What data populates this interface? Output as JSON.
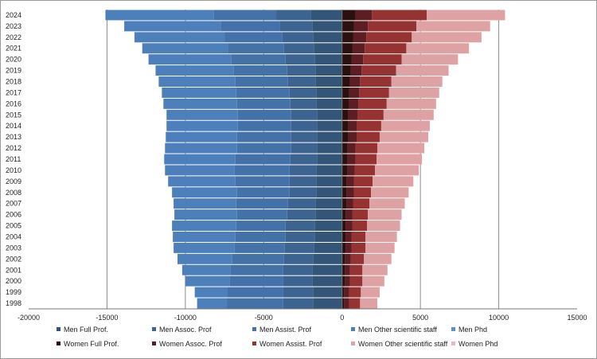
{
  "chart_data": {
    "type": "bar",
    "orientation": "horizontal",
    "stacking": "population-pyramid",
    "title": "",
    "xlabel": "",
    "ylabel": "",
    "xlim": [
      -20000,
      15000
    ],
    "x_ticks": [
      -20000,
      -15000,
      -10000,
      -5000,
      0,
      5000,
      10000,
      15000
    ],
    "x_tick_labels": [
      "-20000",
      "-15000",
      "-10000",
      "-5000",
      "0",
      "5000",
      "10000",
      "15000"
    ],
    "grid": "vertical",
    "legend_position": "bottom",
    "categories": [
      "1998",
      "1999",
      "2000",
      "2001",
      "2002",
      "2003",
      "2004",
      "2005",
      "2006",
      "2007",
      "2008",
      "2009",
      "2010",
      "2011",
      "2012",
      "2013",
      "2014",
      "2015",
      "2016",
      "2017",
      "2018",
      "2019",
      "2020",
      "2021",
      "2022",
      "2023",
      "2024"
    ],
    "series": [
      {
        "name": "Men Full Prof.",
        "side": "men",
        "color": "#335577",
        "values": [
          -1850,
          -1850,
          -1900,
          -1900,
          -1850,
          -1800,
          -1750,
          -1750,
          -1700,
          -1700,
          -1650,
          -1650,
          -1650,
          -1600,
          -1600,
          -1600,
          -1600,
          -1600,
          -1650,
          -1650,
          -1700,
          -1700,
          -1750,
          -1800,
          -1850,
          -1900,
          -2000
        ]
      },
      {
        "name": "Men Assoc. Prof",
        "side": "men",
        "color": "#3d6491",
        "values": [
          -1900,
          -1900,
          -1850,
          -1850,
          -1850,
          -1850,
          -1850,
          -1850,
          -1800,
          -1750,
          -1700,
          -1700,
          -1700,
          -1700,
          -1650,
          -1650,
          -1650,
          -1650,
          -1650,
          -1700,
          -1750,
          -1800,
          -1850,
          -1900,
          -1950,
          -2050,
          -2200
        ]
      },
      {
        "name": "Men Assist. Prof",
        "side": "men",
        "color": "#4471a7",
        "values": [
          -3600,
          -3550,
          -3400,
          -3350,
          -3300,
          -3200,
          -3200,
          -3150,
          -3200,
          -3300,
          -3350,
          -3450,
          -3500,
          -3500,
          -3450,
          -3450,
          -3400,
          -3400,
          -3400,
          -3400,
          -3350,
          -3400,
          -3450,
          -3550,
          -3700,
          -3800,
          -4000
        ]
      },
      {
        "name": "Men Other scientific staff",
        "side": "men",
        "color": "#4d7fbb",
        "values": [
          -1900,
          -2100,
          -2850,
          -3100,
          -3500,
          -3900,
          -4000,
          -4100,
          -4000,
          -4000,
          -4150,
          -4300,
          -4450,
          -4550,
          -4600,
          -4550,
          -4550,
          -4550,
          -4700,
          -4750,
          -4900,
          -5000,
          -5300,
          -5500,
          -5750,
          -6150,
          -6900
        ]
      },
      {
        "name": "Men Phd",
        "side": "men",
        "color": "#5b8fd0",
        "values": [
          0,
          0,
          0,
          0,
          0,
          0,
          0,
          0,
          0,
          0,
          0,
          0,
          0,
          0,
          0,
          0,
          0,
          0,
          0,
          0,
          0,
          0,
          0,
          0,
          0,
          0,
          0
        ]
      },
      {
        "name": "Women Full Prof.",
        "side": "women",
        "color": "#2b1010",
        "values": [
          150,
          150,
          200,
          200,
          200,
          250,
          250,
          250,
          250,
          300,
          300,
          300,
          350,
          350,
          350,
          400,
          400,
          400,
          450,
          450,
          500,
          550,
          600,
          650,
          700,
          750,
          850
        ]
      },
      {
        "name": "Women Assoc. Prof",
        "side": "women",
        "color": "#5c1e22",
        "values": [
          300,
          300,
          300,
          300,
          350,
          350,
          350,
          400,
          400,
          400,
          450,
          450,
          450,
          500,
          500,
          550,
          550,
          600,
          600,
          650,
          650,
          700,
          750,
          800,
          850,
          900,
          1050
        ]
      },
      {
        "name": "Women Assist. Prof",
        "side": "women",
        "color": "#953232",
        "values": [
          700,
          750,
          800,
          800,
          850,
          900,
          900,
          950,
          1000,
          1050,
          1100,
          1200,
          1300,
          1350,
          1400,
          1450,
          1550,
          1650,
          1800,
          1900,
          2000,
          2200,
          2450,
          2650,
          2900,
          3100,
          3500
        ]
      },
      {
        "name": "Women Other scientific staff",
        "side": "women",
        "color": "#dfa2a4",
        "values": [
          1100,
          1200,
          1400,
          1600,
          1750,
          1850,
          2000,
          2100,
          2150,
          2250,
          2400,
          2600,
          2800,
          2900,
          3000,
          3100,
          3100,
          3200,
          3150,
          3200,
          3250,
          3350,
          3600,
          4000,
          4450,
          4700,
          5000
        ]
      },
      {
        "name": "Women Phd",
        "side": "women",
        "color": "#e9babc",
        "values": [
          0,
          0,
          0,
          0,
          0,
          0,
          0,
          0,
          0,
          0,
          0,
          0,
          0,
          0,
          0,
          0,
          0,
          0,
          0,
          0,
          0,
          0,
          0,
          0,
          0,
          0,
          0
        ]
      }
    ]
  }
}
